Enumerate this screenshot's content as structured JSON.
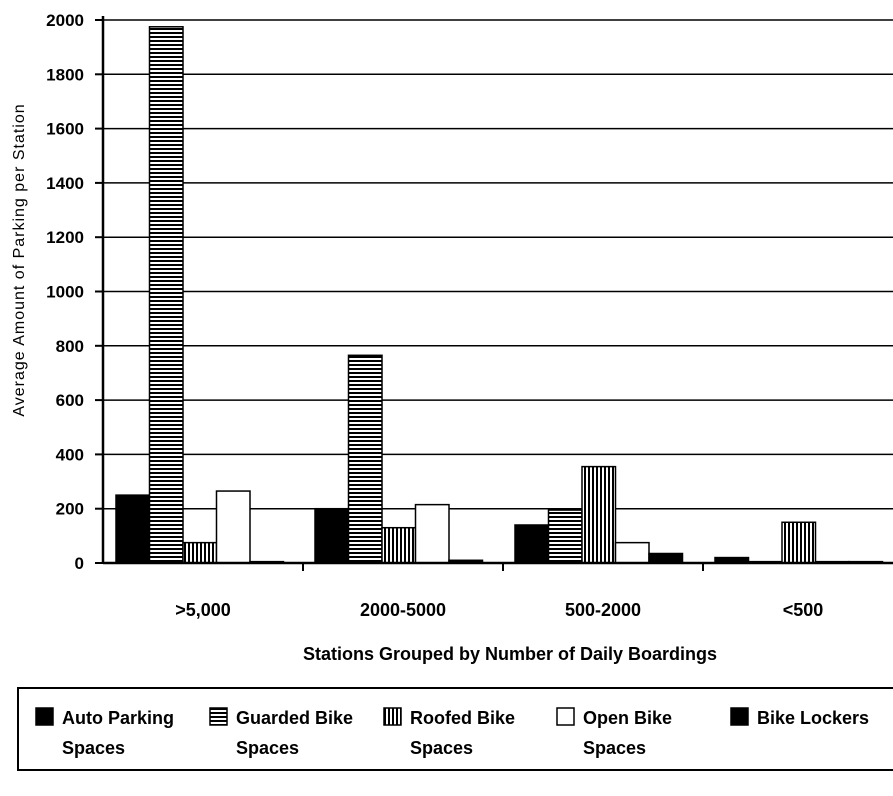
{
  "chart_data": {
    "type": "bar",
    "xlabel": "Stations Grouped by Number of Daily Boardings",
    "ylabel": "Average Amount of Parking per Station",
    "ylim": [
      0,
      2000
    ],
    "yticks": [
      0,
      200,
      400,
      600,
      800,
      1000,
      1200,
      1400,
      1600,
      1800,
      2000
    ],
    "grid": true,
    "legend_position": "bottom",
    "categories": [
      ">5,000",
      "2000-5000",
      "500-2000",
      "<500"
    ],
    "series": [
      {
        "name": "Auto Parking Spaces",
        "name_lines": [
          "Auto Parking",
          "Spaces"
        ],
        "pattern": "solid",
        "values": [
          250,
          200,
          140,
          20
        ]
      },
      {
        "name": "Guarded Bike Spaces",
        "name_lines": [
          "Guarded Bike",
          "Spaces"
        ],
        "pattern": "horizontal",
        "values": [
          1975,
          765,
          195,
          5
        ]
      },
      {
        "name": "Roofed Bike Spaces",
        "name_lines": [
          "Roofed Bike",
          "Spaces"
        ],
        "pattern": "vertical",
        "values": [
          75,
          130,
          355,
          150
        ]
      },
      {
        "name": "Open Bike Spaces",
        "name_lines": [
          "Open Bike",
          "Spaces"
        ],
        "pattern": "white",
        "values": [
          265,
          215,
          75,
          5
        ]
      },
      {
        "name": "Bike Lockers",
        "name_lines": [
          "Bike Lockers"
        ],
        "pattern": "solid",
        "values": [
          5,
          10,
          35,
          5
        ]
      }
    ]
  }
}
